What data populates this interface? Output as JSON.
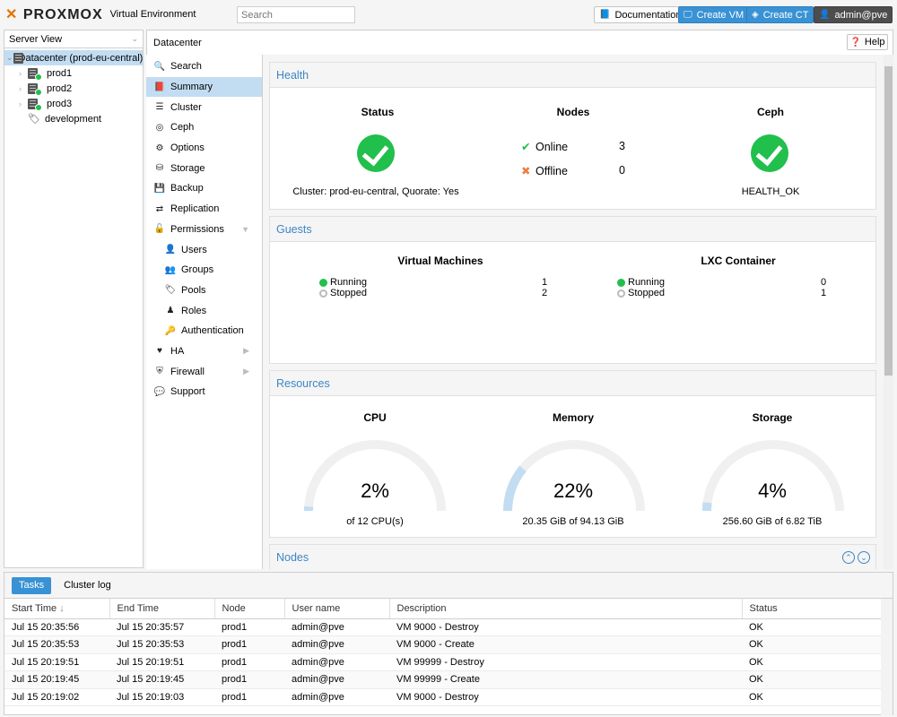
{
  "topbar": {
    "logo_text": "PROXMOX",
    "subtitle": "Virtual Environment",
    "search_placeholder": "Search",
    "doc_label": "Documentation",
    "create_vm_label": "Create VM",
    "create_ct_label": "Create CT",
    "user_label": "admin@pve"
  },
  "tree": {
    "view": "Server View",
    "items": [
      {
        "label": "Datacenter (prod-eu-central)"
      },
      {
        "label": "prod1"
      },
      {
        "label": "prod2"
      },
      {
        "label": "prod3"
      },
      {
        "label": "development"
      }
    ]
  },
  "breadcrumb": "Datacenter",
  "help_label": "Help",
  "nav": [
    {
      "label": "Search",
      "icon": "search-icon"
    },
    {
      "label": "Summary",
      "icon": "book-icon"
    },
    {
      "label": "Cluster",
      "icon": "server-icon"
    },
    {
      "label": "Ceph",
      "icon": "ceph-icon"
    },
    {
      "label": "Options",
      "icon": "gear-icon"
    },
    {
      "label": "Storage",
      "icon": "database-icon"
    },
    {
      "label": "Backup",
      "icon": "floppy-icon"
    },
    {
      "label": "Replication",
      "icon": "retweet-icon"
    },
    {
      "label": "Permissions",
      "icon": "unlock-icon"
    },
    {
      "label": "Users",
      "icon": "user-icon"
    },
    {
      "label": "Groups",
      "icon": "users-icon"
    },
    {
      "label": "Pools",
      "icon": "tags-icon"
    },
    {
      "label": "Roles",
      "icon": "male-icon"
    },
    {
      "label": "Authentication",
      "icon": "key-icon"
    },
    {
      "label": "HA",
      "icon": "heartbeat-icon"
    },
    {
      "label": "Firewall",
      "icon": "shield-icon"
    },
    {
      "label": "Support",
      "icon": "comments-icon"
    }
  ],
  "health": {
    "title": "Health",
    "status_title": "Status",
    "nodes_title": "Nodes",
    "ceph_title": "Ceph",
    "online_label": "Online",
    "online_count": "3",
    "offline_label": "Offline",
    "offline_count": "0",
    "cluster_text": "Cluster: prod-eu-central, Quorate: Yes",
    "ceph_status": "HEALTH_OK"
  },
  "guests": {
    "title": "Guests",
    "vm_title": "Virtual Machines",
    "lxc_title": "LXC Container",
    "running_label": "Running",
    "stopped_label": "Stopped",
    "vm_running": "1",
    "vm_stopped": "2",
    "lxc_running": "0",
    "lxc_stopped": "1"
  },
  "resources": {
    "title": "Resources",
    "cpu": {
      "title": "CPU",
      "value": "2%",
      "fraction": 0.02,
      "detail": "of 12 CPU(s)"
    },
    "memory": {
      "title": "Memory",
      "value": "22%",
      "fraction": 0.22,
      "detail": "20.35 GiB of 94.13 GiB"
    },
    "storage": {
      "title": "Storage",
      "value": "4%",
      "fraction": 0.04,
      "detail": "256.60 GiB of 6.82 TiB"
    }
  },
  "nodes": {
    "title": "Nodes"
  },
  "bottom": {
    "tabs": [
      "Tasks",
      "Cluster log"
    ],
    "columns": [
      "Start Time",
      "End Time",
      "Node",
      "User name",
      "Description",
      "Status"
    ],
    "rows": [
      [
        "Jul 15 20:35:56",
        "Jul 15 20:35:57",
        "prod1",
        "admin@pve",
        "VM 9000 - Destroy",
        "OK"
      ],
      [
        "Jul 15 20:35:53",
        "Jul 15 20:35:53",
        "prod1",
        "admin@pve",
        "VM 9000 - Create",
        "OK"
      ],
      [
        "Jul 15 20:19:51",
        "Jul 15 20:19:51",
        "prod1",
        "admin@pve",
        "VM 99999 - Destroy",
        "OK"
      ],
      [
        "Jul 15 20:19:45",
        "Jul 15 20:19:45",
        "prod1",
        "admin@pve",
        "VM 99999 - Create",
        "OK"
      ],
      [
        "Jul 15 20:19:02",
        "Jul 15 20:19:03",
        "prod1",
        "admin@pve",
        "VM 9000 - Destroy",
        "OK"
      ]
    ]
  },
  "colors": {
    "accent": "#3892d4",
    "ok": "#21bf4b",
    "header_text": "#3d86c6",
    "gauge_fill": "#c2ddf2",
    "gauge_track": "#f0f0f0"
  }
}
